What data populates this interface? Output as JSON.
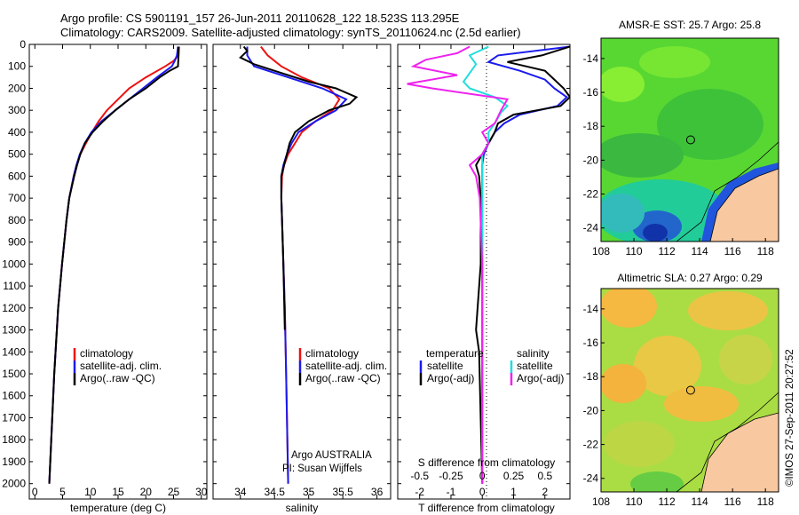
{
  "header": {
    "title_line1": "Argo profile: CS 5901191_157 26-Jun-2011 20110628_122 18.523S 113.295E",
    "title_line2": "Climatology: CARS2009. Satellite-adjusted climatology: synTS_20110624.nc (2.5d earlier)"
  },
  "colors": {
    "climatology": "#ee1111",
    "satellite": "#1a1aee",
    "argo": "#000000",
    "argo_adj_S": "#ee22ee",
    "sat_S": "#22dddd",
    "land": "#f8c8a0"
  },
  "depth_axis": {
    "ticks": [
      "0",
      "100",
      "200",
      "300",
      "400",
      "500",
      "600",
      "700",
      "800",
      "900",
      "1000",
      "1100",
      "1200",
      "1300",
      "1400",
      "1500",
      "1600",
      "1700",
      "1800",
      "1900",
      "2000"
    ]
  },
  "chart_data": [
    {
      "type": "line",
      "name": "temperature",
      "xlabel": "temperature (deg C)",
      "ylabel": "depth (dbar)",
      "xlim": [
        -1,
        31
      ],
      "ylim": [
        2070,
        0
      ],
      "xticks": [
        "0",
        "5",
        "10",
        "15",
        "20",
        "25",
        "30"
      ],
      "legend": {
        "placement": "bottom-center",
        "entries": [
          "climatology",
          "satellite-adj. clim.",
          "Argo(..raw -QC)"
        ]
      },
      "series": [
        {
          "name": "climatology",
          "color": "#ee1111",
          "depth": [
            10,
            50,
            75,
            100,
            150,
            200,
            250,
            300,
            350,
            400,
            450,
            500,
            550,
            600,
            700,
            800,
            1000,
            1200,
            1500,
            2000
          ],
          "values": [
            26.0,
            25.9,
            25.0,
            23.5,
            20.0,
            17.0,
            15.0,
            13.0,
            11.5,
            10.3,
            9.2,
            8.2,
            7.5,
            7.0,
            6.2,
            5.7,
            4.9,
            4.2,
            3.5,
            2.6
          ]
        },
        {
          "name": "satellite-adj. clim.",
          "color": "#1a1aee",
          "depth": [
            10,
            50,
            75,
            100,
            150,
            200,
            250,
            300,
            350,
            400,
            450,
            500,
            550,
            600,
            700,
            800,
            1000,
            1200,
            1500,
            2000
          ],
          "values": [
            25.8,
            25.6,
            25.2,
            24.7,
            22.0,
            19.5,
            17.0,
            14.5,
            12.0,
            10.2,
            9.0,
            8.1,
            7.5,
            7.0,
            6.2,
            5.7,
            4.9,
            4.2,
            3.5,
            2.6
          ]
        },
        {
          "name": "Argo(..raw -QC)",
          "color": "#000000",
          "depth": [
            10,
            50,
            100,
            120,
            150,
            200,
            250,
            300,
            350,
            400,
            450,
            500,
            550,
            600,
            700,
            800,
            1000,
            1200,
            1500,
            2000
          ],
          "values": [
            25.9,
            25.9,
            25.8,
            24.3,
            22.5,
            20.0,
            17.0,
            14.5,
            12.3,
            10.4,
            9.0,
            8.2,
            7.6,
            7.1,
            6.2,
            5.7,
            4.9,
            4.2,
            3.5,
            2.6
          ]
        }
      ]
    },
    {
      "type": "line",
      "name": "salinity",
      "xlabel": "salinity",
      "ylabel": "depth (dbar)",
      "xlim": [
        33.6,
        36.2
      ],
      "ylim": [
        2070,
        0
      ],
      "xticks": [
        "34",
        "34.5",
        "35",
        "35.5",
        "36"
      ],
      "legend": {
        "placement": "bottom-center",
        "entries": [
          "climatology",
          "satellite-adj. clim.",
          "Argo(..raw -QC)"
        ]
      },
      "annotation": {
        "line1": "Argo AUSTRALIA",
        "line2": "PI: Susan Wijffels"
      },
      "series": [
        {
          "name": "climatology",
          "color": "#ee1111",
          "depth": [
            10,
            50,
            100,
            150,
            200,
            250,
            300,
            350,
            400,
            450,
            500,
            550,
            600,
            700,
            800,
            1000,
            1200,
            1500,
            2000
          ],
          "values": [
            34.3,
            34.4,
            34.6,
            34.9,
            35.3,
            35.45,
            35.35,
            35.1,
            34.9,
            34.8,
            34.7,
            34.64,
            34.61,
            34.6,
            34.61,
            34.63,
            34.65,
            34.67,
            34.7
          ]
        },
        {
          "name": "satellite-adj. clim.",
          "color": "#1a1aee",
          "depth": [
            10,
            50,
            100,
            150,
            200,
            250,
            300,
            350,
            400,
            450,
            500,
            550,
            600,
            700,
            800,
            1000,
            1200,
            1500,
            2000
          ],
          "values": [
            34.1,
            34.1,
            34.2,
            34.7,
            35.2,
            35.55,
            35.4,
            35.1,
            34.85,
            34.75,
            34.68,
            34.63,
            34.6,
            34.6,
            34.61,
            34.63,
            34.65,
            34.67,
            34.7
          ]
        },
        {
          "name": "Argo(..raw -QC)",
          "color": "#000000",
          "depth": [
            10,
            30,
            60,
            90,
            130,
            170,
            200,
            240,
            270,
            300,
            350,
            400,
            450,
            500,
            550,
            600,
            700,
            800,
            1000,
            1300
          ],
          "values": [
            34.05,
            34.1,
            34.0,
            34.2,
            34.6,
            35.0,
            35.4,
            35.7,
            35.6,
            35.3,
            35.0,
            34.8,
            34.72,
            34.68,
            34.64,
            34.6,
            34.6,
            34.61,
            34.63,
            34.65
          ]
        }
      ]
    },
    {
      "type": "line",
      "name": "difference_from_climatology",
      "xlabel_top": "S difference from climatology",
      "xlabel": "T difference from climatology",
      "xlim": [
        -2.7,
        2.8
      ],
      "ylim": [
        2070,
        0
      ],
      "xticks": [
        "-2",
        "-1",
        "0",
        "1",
        "2"
      ],
      "xticks_S": [
        "-0.5",
        "-0.25",
        "0",
        "0.25",
        "0.5"
      ],
      "legend": {
        "placement": "bottom",
        "temperature_title": "temperature",
        "salinity_title": "salinity",
        "entries": [
          "satellite",
          "Argo(-adj)",
          "satellite",
          "Argo(-adj)"
        ]
      },
      "series": [
        {
          "name": "temperature satellite",
          "color": "#1a1aee",
          "depth": [
            10,
            50,
            80,
            120,
            160,
            200,
            240,
            280,
            320,
            360,
            400,
            450,
            500,
            550,
            600,
            700,
            1000,
            1400,
            2000
          ],
          "values": [
            2.8,
            0.5,
            0.2,
            1.2,
            2.0,
            2.3,
            2.7,
            2.4,
            1.2,
            0.7,
            0.4,
            0.2,
            0.05,
            0.0,
            0.0,
            0.0,
            0.0,
            0.0,
            0.0
          ]
        },
        {
          "name": "temperature Argo(-adj)",
          "color": "#000000",
          "depth": [
            10,
            50,
            80,
            120,
            160,
            200,
            240,
            280,
            320,
            360,
            400,
            450,
            500,
            550,
            600,
            700,
            1000,
            1300,
            1400,
            2000
          ],
          "values": [
            2.8,
            1.9,
            0.8,
            2.0,
            2.3,
            2.6,
            2.8,
            2.5,
            1.0,
            0.5,
            0.4,
            0.2,
            0.0,
            -0.2,
            -0.1,
            -0.05,
            -0.05,
            -0.2,
            -0.1,
            0.0
          ]
        },
        {
          "name": "salinity satellite",
          "color": "#22dddd",
          "depth": [
            10,
            50,
            90,
            130,
            170,
            200,
            240,
            280,
            310,
            360,
            400,
            450,
            500,
            600,
            800,
            1000,
            1400,
            2000
          ],
          "values": [
            0.05,
            -0.1,
            -0.05,
            -0.1,
            -0.15,
            -0.1,
            0.1,
            0.2,
            0.15,
            0.1,
            0.05,
            0.05,
            0.0,
            0.0,
            0.0,
            0.0,
            0.0,
            0.0
          ]
        },
        {
          "name": "salinity Argo(-adj)",
          "color": "#ee22ee",
          "depth": [
            10,
            40,
            70,
            100,
            140,
            180,
            200,
            250,
            300,
            360,
            400,
            450,
            500,
            550,
            600,
            700,
            1000,
            2000
          ],
          "values": [
            -0.1,
            -0.2,
            -0.45,
            -0.55,
            -0.2,
            -0.6,
            -0.4,
            0.2,
            0.15,
            0.1,
            0.0,
            0.05,
            0.0,
            -0.1,
            -0.05,
            -0.02,
            0.0,
            0.0
          ]
        }
      ]
    },
    {
      "type": "heatmap",
      "name": "sst_map",
      "title": "AMSR-E SST: 25.7 Argo: 25.8",
      "xlim": [
        108,
        118.8
      ],
      "ylim": [
        -24.8,
        -12.8
      ],
      "xticks": [
        "108",
        "110",
        "112",
        "114",
        "116",
        "118"
      ],
      "yticks": [
        "-14",
        "-16",
        "-18",
        "-20",
        "-22",
        "-24"
      ],
      "argo_position": {
        "lon": 113.295,
        "lat": -18.523
      }
    },
    {
      "type": "heatmap",
      "name": "sla_map",
      "title": "Altimetric SLA: 0.27 Argo: 0.29",
      "xlim": [
        108,
        118.8
      ],
      "ylim": [
        -24.8,
        -12.8
      ],
      "xticks": [
        "108",
        "110",
        "112",
        "114",
        "116",
        "118"
      ],
      "yticks": [
        "-14",
        "-16",
        "-18",
        "-20",
        "-22",
        "-24"
      ],
      "argo_position": {
        "lon": 113.295,
        "lat": -18.523
      }
    }
  ],
  "footer": {
    "credit": "©IMOS 27-Sep-2011 20:27:52"
  }
}
